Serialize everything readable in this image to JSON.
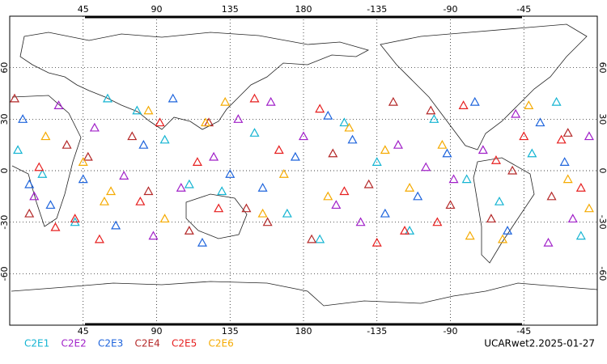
{
  "chart_data": {
    "type": "scatter",
    "xlim": [
      0,
      360
    ],
    "ylim": [
      -90,
      90
    ],
    "xticks": [
      45,
      90,
      135,
      180,
      {
        "value": 225,
        "label": "-135"
      },
      {
        "value": 270,
        "label": "-90"
      },
      {
        "value": 315,
        "label": "-45"
      }
    ],
    "yticks": [
      60,
      30,
      0,
      -30,
      -60
    ],
    "grid": true,
    "footer": "UCARwet2.2025-01-27",
    "series": [
      {
        "name": "C2E1",
        "color": "#14b4d2",
        "x": [
          5,
          40,
          78,
          110,
          150,
          190,
          225,
          260,
          300,
          335,
          20,
          95,
          170,
          245,
          320,
          60,
          130,
          205,
          280,
          350
        ],
        "y": [
          12,
          -30,
          35,
          -8,
          22,
          -40,
          5,
          30,
          -18,
          40,
          -2,
          18,
          -25,
          -35,
          10,
          42,
          -12,
          28,
          -5,
          -38
        ]
      },
      {
        "name": "C2E2",
        "color": "#a020c8",
        "x": [
          15,
          52,
          88,
          125,
          160,
          200,
          238,
          272,
          310,
          345,
          30,
          105,
          180,
          255,
          330,
          70,
          140,
          215,
          290,
          355
        ],
        "y": [
          -15,
          25,
          -38,
          8,
          40,
          -20,
          15,
          -5,
          33,
          -28,
          38,
          -10,
          20,
          2,
          -42,
          -3,
          30,
          -30,
          12,
          20
        ]
      },
      {
        "name": "C2E3",
        "color": "#1e64dc",
        "x": [
          8,
          45,
          82,
          118,
          155,
          195,
          230,
          268,
          305,
          340,
          25,
          100,
          175,
          250,
          325,
          65,
          135,
          210,
          285,
          12
        ],
        "y": [
          30,
          -5,
          15,
          -42,
          -10,
          32,
          -25,
          10,
          -35,
          5,
          -20,
          42,
          8,
          -15,
          28,
          -32,
          -2,
          18,
          40,
          -8
        ]
      },
      {
        "name": "C2E4",
        "color": "#b42828",
        "x": [
          12,
          48,
          85,
          122,
          158,
          198,
          235,
          270,
          308,
          342,
          35,
          110,
          185,
          258,
          332,
          75,
          145,
          220,
          295,
          3
        ],
        "y": [
          -25,
          8,
          -12,
          28,
          -30,
          10,
          40,
          -20,
          0,
          22,
          15,
          -35,
          -40,
          35,
          -15,
          20,
          -22,
          -8,
          -28,
          42
        ]
      },
      {
        "name": "C2E5",
        "color": "#e61e1e",
        "x": [
          18,
          55,
          92,
          128,
          165,
          205,
          242,
          278,
          315,
          350,
          40,
          115,
          190,
          262,
          338,
          80,
          150,
          225,
          298,
          28
        ],
        "y": [
          2,
          -40,
          28,
          -22,
          12,
          -12,
          -35,
          38,
          20,
          -10,
          -28,
          5,
          36,
          -30,
          18,
          -18,
          42,
          -42,
          6,
          -33
        ]
      },
      {
        "name": "C2E6",
        "color": "#f5aa00",
        "x": [
          22,
          58,
          95,
          132,
          168,
          208,
          245,
          282,
          318,
          355,
          45,
          120,
          195,
          265,
          342,
          85,
          155,
          230,
          302,
          62
        ],
        "y": [
          20,
          -18,
          -28,
          40,
          -2,
          25,
          -10,
          -38,
          38,
          -22,
          5,
          28,
          -15,
          15,
          -5,
          35,
          -25,
          12,
          -40,
          -12
        ]
      }
    ]
  }
}
